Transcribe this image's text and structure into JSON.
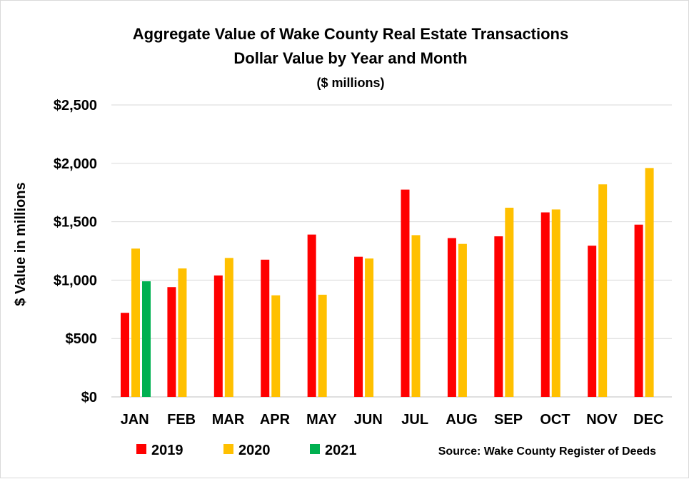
{
  "chart_data": {
    "type": "bar",
    "title": "Aggregate Value of Wake County Real Estate Transactions",
    "subtitle": "Dollar Value by Year and Month",
    "units_note": "($ millions)",
    "ylabel": "$ Value in millions",
    "xlabel": "",
    "ylim": [
      0,
      2500
    ],
    "yticks": [
      0,
      500,
      1000,
      1500,
      2000,
      2500
    ],
    "ytick_labels": [
      "$0",
      "$500",
      "$1,000",
      "$1,500",
      "$2,000",
      "$2,500"
    ],
    "grid": true,
    "categories": [
      "JAN",
      "FEB",
      "MAR",
      "APR",
      "MAY",
      "JUN",
      "JUL",
      "AUG",
      "SEP",
      "OCT",
      "NOV",
      "DEC"
    ],
    "series": [
      {
        "name": "2019",
        "color": "#ff0000",
        "values": [
          720,
          940,
          1040,
          1175,
          1390,
          1200,
          1775,
          1360,
          1375,
          1580,
          1295,
          1475
        ]
      },
      {
        "name": "2020",
        "color": "#ffc000",
        "values": [
          1270,
          1100,
          1190,
          870,
          875,
          1185,
          1385,
          1310,
          1620,
          1605,
          1820,
          1960
        ]
      },
      {
        "name": "2021",
        "color": "#00b050",
        "values": [
          990,
          null,
          null,
          null,
          null,
          null,
          null,
          null,
          null,
          null,
          null,
          null
        ]
      }
    ],
    "legend_position": "bottom",
    "source": "Source: Wake County Register of Deeds"
  }
}
